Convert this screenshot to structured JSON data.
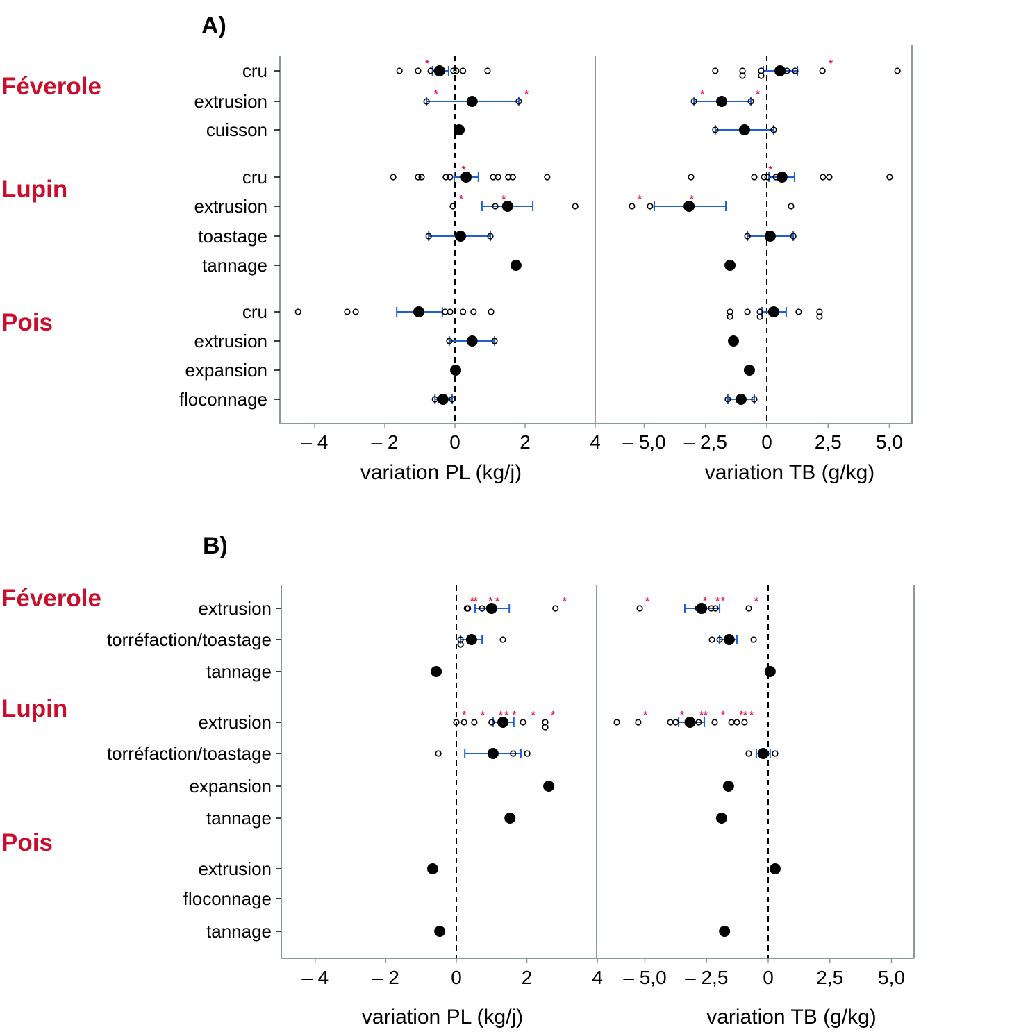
{
  "chart_data": [
    {
      "type": "scatter",
      "panel_label": "A)",
      "groups": [
        "Féverole",
        "Lupin",
        "Pois"
      ],
      "axes": [
        {
          "key": "pl",
          "xlabel": "variation PL (kg/j)",
          "xlim": [
            -5,
            4
          ],
          "ticks": [
            -4,
            -2,
            0,
            2,
            4
          ],
          "tick_labels": [
            "– 4",
            "– 2",
            "0",
            "2",
            "4"
          ],
          "reference_line": 0
        },
        {
          "key": "tb",
          "xlabel": "variation TB (g/kg)",
          "xlim": [
            -7,
            5.9
          ],
          "ticks": [
            -5,
            -2.5,
            0,
            2.5,
            5
          ],
          "tick_labels": [
            "– 5,0",
            "– 2,5",
            "0",
            "2,5",
            "5,0"
          ],
          "reference_line": 0
        }
      ],
      "rows": [
        {
          "group": "Féverole",
          "label": "cru",
          "pl": {
            "mean": -0.44,
            "ci": [
              -0.64,
              -0.18
            ],
            "points": [
              -1.58,
              -1.05,
              -0.69,
              -0.04,
              0.04,
              0.23,
              0.93
            ],
            "stars": [
              -0.83
            ]
          },
          "tb": {
            "mean": 0.54,
            "ci": [
              -0.14,
              1.25
            ],
            "points": [
              -2.1,
              -0.99,
              -0.99,
              -0.23,
              -0.23,
              0.82,
              1.16,
              2.27,
              5.33
            ],
            "stars": [
              2.55
            ]
          }
        },
        {
          "group": "Féverole",
          "label": "extrusion",
          "pl": {
            "mean": 0.49,
            "ci": [
              -0.81,
              1.82
            ],
            "points": [
              -0.81,
              1.82
            ],
            "stars": [
              -0.58,
              2.0
            ]
          },
          "tb": {
            "mean": -1.84,
            "ci": [
              -2.97,
              -0.65
            ],
            "points": [
              -2.97,
              -0.65
            ],
            "stars": [
              -2.69,
              -0.42
            ]
          }
        },
        {
          "group": "Féverole",
          "label": "cuisson",
          "pl": {
            "mean": 0.12,
            "ci": null,
            "points": [],
            "stars": []
          },
          "tb": {
            "mean": -0.91,
            "ci": [
              -2.1,
              0.28
            ],
            "points": [
              -2.1,
              0.28
            ],
            "stars": []
          }
        },
        {
          "group": "Lupin",
          "label": "cru",
          "pl": {
            "mean": 0.32,
            "ci": [
              -0.02,
              0.67
            ],
            "points": [
              -1.76,
              -1.05,
              -0.95,
              -0.26,
              -0.14,
              1.09,
              1.23,
              1.52,
              1.65,
              2.63
            ],
            "stars": [
              0.21
            ]
          },
          "tb": {
            "mean": 0.62,
            "ci": [
              0.09,
              1.13
            ],
            "points": [
              -3.09,
              -0.51,
              -0.11,
              0.03,
              0.37,
              2.29,
              2.55,
              5.01
            ],
            "stars": [
              0.09
            ]
          }
        },
        {
          "group": "Lupin",
          "label": "extrusion",
          "pl": {
            "mean": 1.5,
            "ci": [
              0.77,
              2.22
            ],
            "points": [
              -0.06,
              1.15,
              3.43
            ],
            "stars": [
              0.14,
              1.35
            ]
          },
          "tb": {
            "mean": -3.17,
            "ci": [
              -4.59,
              -1.67
            ],
            "points": [
              -5.5,
              -4.76,
              0.99
            ],
            "stars": [
              -5.24,
              -3.12
            ]
          }
        },
        {
          "group": "Lupin",
          "label": "toastage",
          "pl": {
            "mean": 0.16,
            "ci": [
              -0.75,
              1.01
            ],
            "points": [
              -0.75,
              1.01
            ],
            "stars": []
          },
          "tb": {
            "mean": 0.14,
            "ci": [
              -0.79,
              1.08
            ],
            "points": [
              -0.79,
              1.08
            ],
            "stars": []
          }
        },
        {
          "group": "Lupin",
          "label": "tannage",
          "pl": {
            "mean": 1.74,
            "ci": null,
            "points": [],
            "stars": []
          },
          "tb": {
            "mean": -1.5,
            "ci": null,
            "points": [],
            "stars": []
          }
        },
        {
          "group": "Pois",
          "label": "cru",
          "pl": {
            "mean": -1.03,
            "ci": [
              -1.66,
              -0.36
            ],
            "points": [
              -4.47,
              -3.07,
              -2.83,
              -0.28,
              -0.14,
              0.23,
              0.53,
              1.03
            ],
            "stars": []
          },
          "tb": {
            "mean": 0.28,
            "ci": [
              -0.2,
              0.79
            ],
            "points": [
              -1.5,
              -1.5,
              -0.79,
              -0.28,
              -0.28,
              1.3,
              2.15,
              2.15
            ],
            "stars": []
          }
        },
        {
          "group": "Pois",
          "label": "extrusion",
          "pl": {
            "mean": 0.49,
            "ci": [
              -0.16,
              1.13
            ],
            "points": [
              -0.16,
              1.13
            ],
            "stars": []
          },
          "tb": {
            "mean": -1.36,
            "ci": null,
            "points": [],
            "stars": []
          }
        },
        {
          "group": "Pois",
          "label": "expansion",
          "pl": {
            "mean": 0.02,
            "ci": null,
            "points": [],
            "stars": []
          },
          "tb": {
            "mean": -0.71,
            "ci": null,
            "points": [],
            "stars": []
          }
        },
        {
          "group": "Pois",
          "label": "floconnage",
          "pl": {
            "mean": -0.34,
            "ci": [
              -0.57,
              -0.08
            ],
            "points": [
              -0.57,
              -0.08
            ],
            "stars": []
          },
          "tb": {
            "mean": -1.05,
            "ci": [
              -1.59,
              -0.51
            ],
            "points": [
              -1.59,
              -0.51
            ],
            "stars": []
          }
        }
      ]
    },
    {
      "type": "scatter",
      "panel_label": "B)",
      "groups": [
        "Féverole",
        "Lupin",
        "Pois"
      ],
      "axes": [
        {
          "key": "pl",
          "xlabel": "variation PL (kg/j)",
          "xlim": [
            -5,
            4
          ],
          "ticks": [
            -4,
            -2,
            0,
            2,
            4
          ],
          "tick_labels": [
            "– 4",
            "– 2",
            "0",
            "2",
            "4"
          ],
          "reference_line": 0
        },
        {
          "key": "tb",
          "xlabel": "variation TB (g/kg)",
          "xlim": [
            -7,
            5.9
          ],
          "ticks": [
            -5,
            -2.5,
            0,
            2.5,
            5
          ],
          "tick_labels": [
            "– 5,0",
            "– 2,5",
            "0",
            "2,5",
            "5,0"
          ],
          "reference_line": 0
        }
      ],
      "rows": [
        {
          "group": "Féverole",
          "label": "extrusion",
          "pl": {
            "mean": 1.0,
            "ci": [
              0.53,
              1.5
            ],
            "points": [
              0.3,
              0.33,
              0.73,
              2.81
            ],
            "stars": [
              0.41,
              0.51,
              0.93,
              1.12,
              3.03
            ]
          },
          "tb": {
            "mean": -2.7,
            "ci": [
              -3.38,
              -1.97
            ],
            "points": [
              -5.21,
              -2.85,
              -2.31,
              -2.14,
              -0.79
            ],
            "stars": [
              -4.96,
              -2.62,
              -2.11,
              -1.89,
              -0.54
            ]
          }
        },
        {
          "group": "Féverole",
          "label": "torréfaction/toastage",
          "pl": {
            "mean": 0.43,
            "ci": [
              0.12,
              0.73
            ],
            "points": [
              0.12,
              0.12,
              0.12,
              1.32
            ],
            "stars": []
          },
          "tb": {
            "mean": -1.58,
            "ci": [
              -1.97,
              -1.27
            ],
            "points": [
              -2.28,
              -1.97,
              -0.59
            ],
            "stars": []
          }
        },
        {
          "group": "Féverole",
          "label": "tannage",
          "pl": {
            "mean": -0.57,
            "ci": null,
            "points": [],
            "stars": []
          },
          "tb": {
            "mean": 0.08,
            "ci": null,
            "points": [],
            "stars": []
          }
        },
        {
          "group": "Lupin",
          "label": "extrusion",
          "pl": {
            "mean": 1.32,
            "ci": [
              1.04,
              1.63
            ],
            "points": [
              0.0,
              0.22,
              0.51,
              1.0,
              1.89,
              2.52,
              2.52
            ],
            "stars": [
              0.18,
              0.71,
              1.22,
              1.38,
              1.6,
              2.14,
              2.7
            ]
          },
          "tb": {
            "mean": -3.17,
            "ci": [
              -3.63,
              -2.59
            ],
            "points": [
              -6.14,
              -5.27,
              -3.97,
              -3.75,
              -2.82,
              -2.17,
              -1.49,
              -1.27,
              -0.96
            ],
            "stars": [
              -5.04,
              -3.55,
              -2.76,
              -2.59,
              -1.89,
              -1.15,
              -0.99,
              -0.73
            ]
          }
        },
        {
          "group": "Lupin",
          "label": "torréfaction/toastage",
          "pl": {
            "mean": 1.04,
            "ci": [
              0.24,
              1.83
            ],
            "points": [
              -0.51,
              1.61,
              2.01
            ],
            "stars": []
          },
          "tb": {
            "mean": -0.2,
            "ci": [
              -0.48,
              0.08
            ],
            "points": [
              -0.79,
              0.28
            ],
            "stars": []
          }
        },
        {
          "group": "Lupin",
          "label": "expansion",
          "pl": {
            "mean": 2.62,
            "ci": null,
            "points": [],
            "stars": []
          },
          "tb": {
            "mean": -1.61,
            "ci": null,
            "points": [],
            "stars": []
          }
        },
        {
          "group": "Lupin",
          "label": "tannage",
          "pl": {
            "mean": 1.52,
            "ci": null,
            "points": [],
            "stars": []
          },
          "tb": {
            "mean": -1.89,
            "ci": null,
            "points": [],
            "stars": []
          }
        },
        {
          "group": "Pois",
          "label": "extrusion",
          "pl": {
            "mean": -0.67,
            "ci": null,
            "points": [],
            "stars": []
          },
          "tb": {
            "mean": 0.28,
            "ci": null,
            "points": [],
            "stars": []
          }
        },
        {
          "group": "Pois",
          "label": "floconnage",
          "pl": {
            "mean": null,
            "ci": null,
            "points": [],
            "stars": []
          },
          "tb": {
            "mean": null,
            "ci": null,
            "points": [],
            "stars": []
          }
        },
        {
          "group": "Pois",
          "label": "tannage",
          "pl": {
            "mean": -0.47,
            "ci": null,
            "points": [],
            "stars": []
          },
          "tb": {
            "mean": -1.77,
            "ci": null,
            "points": [],
            "stars": []
          }
        }
      ]
    }
  ],
  "colors": {
    "group_label": "#c8102e",
    "ci": "#1f5fd6",
    "star": "#e8174a",
    "axis": "#8c9a9a",
    "point": "#000000"
  }
}
